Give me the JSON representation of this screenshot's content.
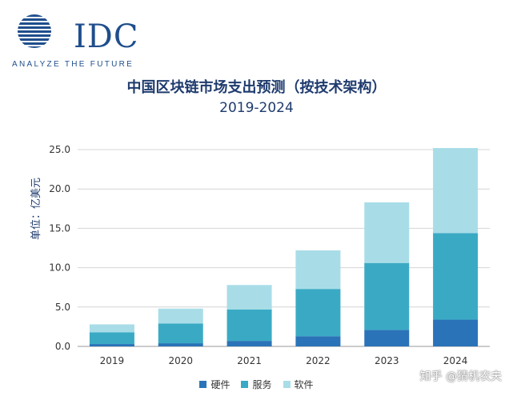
{
  "brand": {
    "name": "IDC",
    "tagline": "ANALYZE THE FUTURE",
    "color": "#1f4e8c"
  },
  "watermark": "知乎 @猜机农夫",
  "chart_data": {
    "type": "bar",
    "stacked": true,
    "title": "中国区块链市场支出预测（按技术架构）",
    "subtitle": "2019-2024",
    "ylabel": "单位：亿美元",
    "xlabel": "",
    "ylim": [
      0,
      25
    ],
    "yticks": [
      "0.0",
      "5.0",
      "10.0",
      "15.0",
      "20.0",
      "25.0"
    ],
    "ytick_values": [
      0,
      5,
      10,
      15,
      20,
      25
    ],
    "categories": [
      "2019",
      "2020",
      "2021",
      "2022",
      "2023",
      "2024"
    ],
    "grid": true,
    "legend_position": "bottom",
    "series": [
      {
        "name": "硬件",
        "color": "#2a73b8",
        "values": [
          0.3,
          0.4,
          0.7,
          1.3,
          2.1,
          3.4
        ]
      },
      {
        "name": "服务",
        "color": "#3aaac4",
        "values": [
          1.5,
          2.5,
          4.0,
          6.0,
          8.5,
          11.0
        ]
      },
      {
        "name": "软件",
        "color": "#a8dde8",
        "values": [
          1.0,
          1.9,
          3.1,
          4.9,
          7.7,
          10.8
        ]
      }
    ]
  }
}
